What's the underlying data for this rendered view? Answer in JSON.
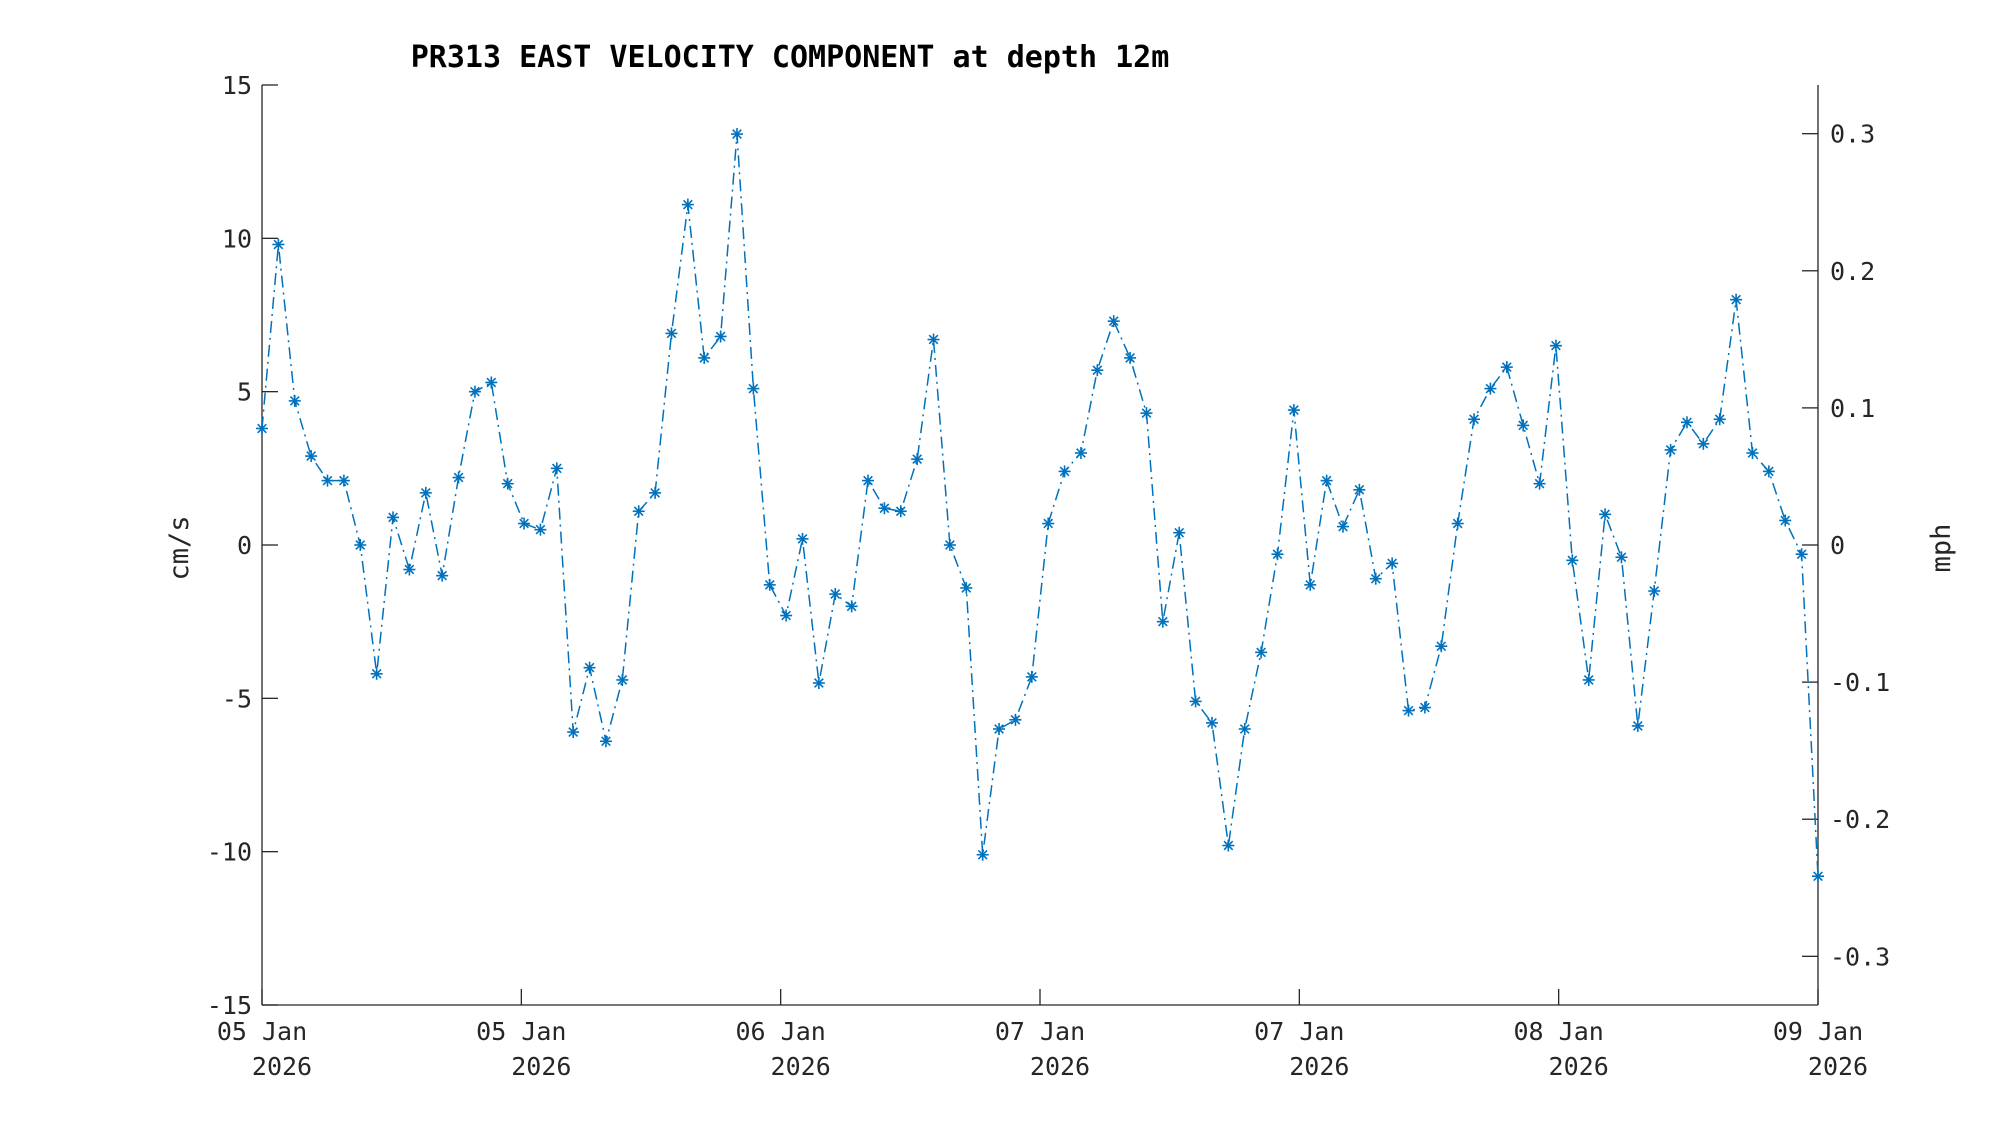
{
  "chart_data": {
    "type": "line",
    "title": "PR313 EAST VELOCITY COMPONENT at depth 12m",
    "ylabel": "cm/s",
    "y2label": "mph",
    "ylim": [
      -15,
      15
    ],
    "y2lim": [
      -0.3355,
      0.3355
    ],
    "yticks": [
      "15",
      "10",
      "5",
      "0",
      "-5",
      "-10",
      "-15"
    ],
    "y2ticks": [
      "0.3",
      "0.2",
      "0.1",
      "0",
      "-0.1",
      "-0.2",
      "-0.3"
    ],
    "xticks": [
      {
        "line1": "05 Jan",
        "line2": "2026"
      },
      {
        "line1": "05 Jan",
        "line2": "2026"
      },
      {
        "line1": "06 Jan",
        "line2": "2026"
      },
      {
        "line1": "07 Jan",
        "line2": "2026"
      },
      {
        "line1": "07 Jan",
        "line2": "2026"
      },
      {
        "line1": "08 Jan",
        "line2": "2026"
      },
      {
        "line1": "09 Jan",
        "line2": "2026"
      }
    ],
    "series_color": "#0072BD",
    "marker": "asterisk",
    "line_style": "dash-dot",
    "grid": false,
    "values": [
      3.8,
      9.8,
      4.7,
      2.9,
      2.1,
      2.1,
      0.0,
      -4.2,
      0.9,
      -0.8,
      1.7,
      -1.0,
      2.2,
      5.0,
      5.3,
      2.0,
      0.7,
      0.5,
      2.5,
      -6.1,
      -4.0,
      -6.4,
      -4.4,
      1.1,
      1.7,
      6.9,
      11.1,
      6.1,
      6.8,
      13.4,
      5.1,
      -1.3,
      -2.3,
      0.2,
      -4.5,
      -1.6,
      -2.0,
      2.1,
      1.2,
      1.1,
      2.8,
      6.7,
      0.0,
      -1.4,
      -10.1,
      -6.0,
      -5.7,
      -4.3,
      0.7,
      2.4,
      3.0,
      5.7,
      7.3,
      6.1,
      4.3,
      -2.5,
      0.4,
      -5.1,
      -5.8,
      -9.8,
      -6.0,
      -3.5,
      -0.3,
      4.4,
      -1.3,
      2.1,
      0.6,
      1.8,
      -1.1,
      -0.6,
      -5.4,
      -5.3,
      -3.3,
      0.7,
      4.1,
      5.1,
      5.8,
      3.9,
      2.0,
      6.5,
      -0.5,
      -4.4,
      1.0,
      -0.4,
      -5.9,
      -1.5,
      3.1,
      4.0,
      3.3,
      4.1,
      8.0,
      3.0,
      2.4,
      0.8,
      -0.3,
      -10.8
    ]
  }
}
